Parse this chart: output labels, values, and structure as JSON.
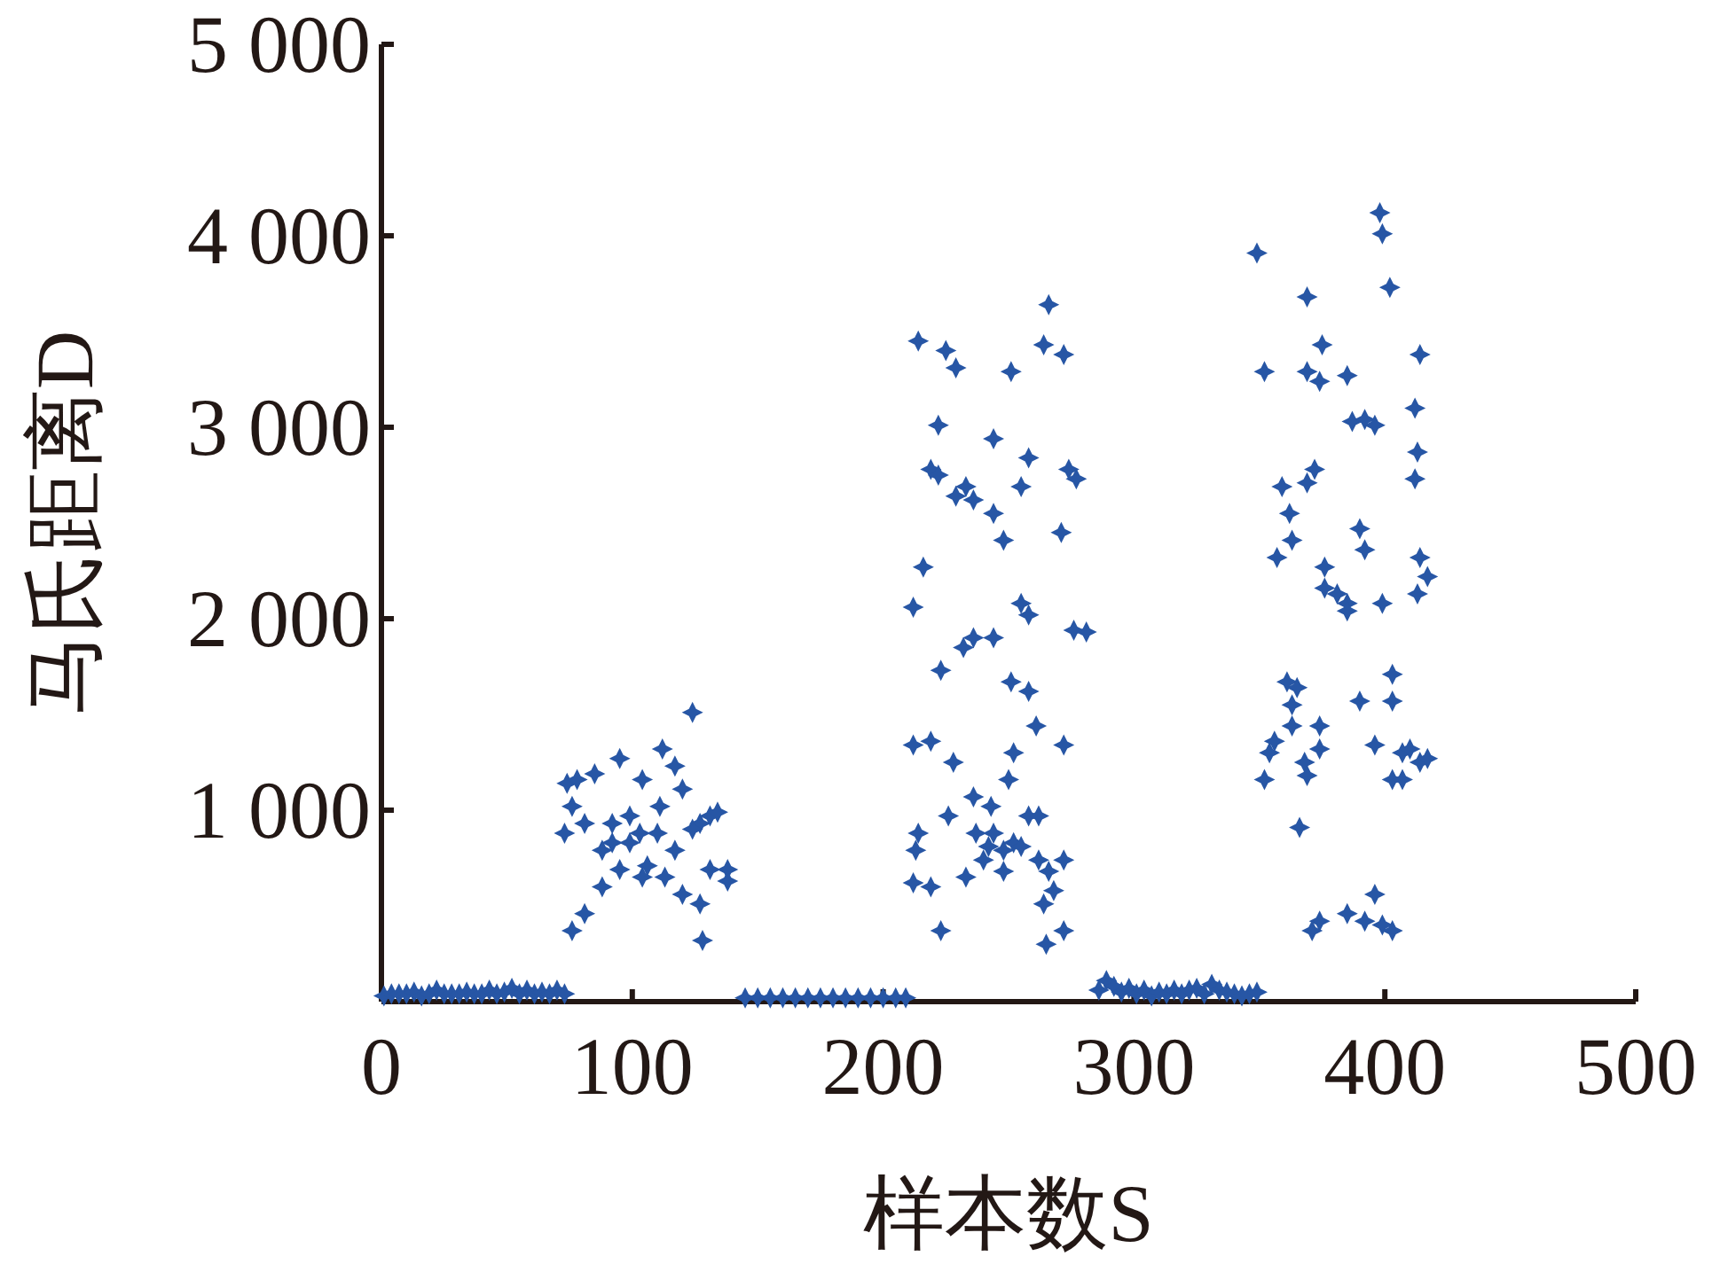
{
  "chart_data": {
    "type": "scatter",
    "xlabel": "样本数S",
    "ylabel": "马氏距离D",
    "xlim": [
      0,
      500
    ],
    "ylim": [
      0,
      5000
    ],
    "xticks": [
      0,
      100,
      200,
      300,
      400,
      500
    ],
    "yticks": [
      {
        "value": 1000,
        "label": "1 000"
      },
      {
        "value": 2000,
        "label": "2 000"
      },
      {
        "value": 3000,
        "label": "3 000"
      },
      {
        "value": 4000,
        "label": "4 000"
      },
      {
        "value": 5000,
        "label": "5 000"
      }
    ],
    "marker": "cross",
    "series": [
      {
        "color": "#2756a5",
        "x": [
          1,
          4,
          7,
          10,
          13,
          16,
          19,
          22,
          25,
          28,
          31,
          34,
          37,
          40,
          43,
          46,
          49,
          52,
          55,
          58,
          61,
          64,
          67,
          70,
          73,
          74,
          78,
          85,
          73,
          81,
          95,
          112,
          124,
          117,
          120,
          104,
          99,
          103,
          92,
          110,
          117,
          127,
          131,
          134,
          131,
          138,
          127,
          120,
          113,
          88,
          81,
          76,
          128,
          138,
          106,
          95,
          88,
          99,
          111,
          124,
          76,
          92,
          104,
          145,
          150,
          155,
          160,
          165,
          170,
          175,
          180,
          185,
          190,
          195,
          200,
          205,
          209,
          214,
          222,
          225,
          229,
          219,
          222,
          229,
          236,
          233,
          212,
          216,
          223,
          236,
          232,
          219,
          212,
          214,
          213,
          212,
          219,
          223,
          228,
          226,
          236,
          237,
          233,
          240,
          242,
          244,
          243,
          244,
          244,
          244,
          248,
          251,
          255,
          258,
          255,
          258,
          251,
          258,
          261,
          252,
          250,
          248,
          248,
          252,
          255,
          258,
          262,
          262,
          266,
          264,
          265,
          268,
          272,
          266,
          264,
          272,
          274,
          277,
          271,
          276,
          281,
          272,
          272,
          286,
          289,
          292,
          295,
          298,
          301,
          304,
          307,
          310,
          313,
          316,
          319,
          322,
          325,
          328,
          331,
          334,
          337,
          340,
          343,
          346,
          349,
          349,
          352,
          352,
          354,
          356,
          357,
          359,
          362,
          363,
          361,
          363,
          363,
          365,
          369,
          369,
          375,
          374,
          369,
          372,
          368,
          369,
          366,
          374,
          374,
          376,
          376,
          381,
          385,
          385,
          385,
          387,
          392,
          396,
          398,
          399,
          402,
          390,
          392,
          390,
          396,
          403,
          407,
          399,
          403,
          403,
          407,
          410,
          412,
          413,
          412,
          414,
          414,
          417,
          413,
          414,
          417,
          374,
          385,
          392,
          396,
          399,
          403,
          371
        ],
        "values": [
          30,
          40,
          40,
          40,
          50,
          30,
          40,
          60,
          40,
          40,
          40,
          50,
          40,
          40,
          60,
          40,
          50,
          70,
          40,
          60,
          40,
          50,
          40,
          60,
          40,
          1140,
          1160,
          1190,
          880,
          930,
          1270,
          1320,
          1510,
          1230,
          1110,
          1160,
          970,
          880,
          830,
          880,
          790,
          930,
          970,
          990,
          690,
          690,
          510,
          560,
          650,
          600,
          460,
          370,
          320,
          630,
          710,
          690,
          790,
          830,
          1020,
          900,
          1020,
          930,
          650,
          20,
          20,
          20,
          20,
          20,
          20,
          20,
          20,
          20,
          20,
          20,
          20,
          20,
          20,
          3450,
          3010,
          3400,
          3310,
          2780,
          2750,
          2640,
          2620,
          2690,
          2060,
          2270,
          1730,
          1900,
          1850,
          1360,
          1340,
          880,
          790,
          620,
          600,
          370,
          1250,
          970,
          1070,
          880,
          650,
          740,
          810,
          880,
          1020,
          1900,
          2550,
          2940,
          2410,
          3290,
          2690,
          2840,
          2080,
          2020,
          1670,
          1620,
          1440,
          1300,
          1160,
          680,
          790,
          830,
          810,
          970,
          970,
          740,
          680,
          510,
          300,
          580,
          740,
          3640,
          3430,
          3380,
          2780,
          2730,
          2450,
          1940,
          1930,
          1340,
          370,
          60,
          110,
          80,
          50,
          70,
          40,
          60,
          30,
          50,
          40,
          60,
          40,
          60,
          70,
          40,
          90,
          60,
          50,
          40,
          30,
          40,
          50,
          3910,
          3290,
          1160,
          1300,
          1360,
          2320,
          2690,
          2550,
          2410,
          1670,
          1550,
          1440,
          1640,
          3680,
          3290,
          3430,
          3240,
          2710,
          2780,
          1250,
          1180,
          910,
          1320,
          1440,
          2160,
          2270,
          2130,
          2080,
          2040,
          3270,
          3030,
          3040,
          3010,
          4120,
          4010,
          3730,
          2470,
          2360,
          1570,
          1340,
          1160,
          1300,
          2080,
          1710,
          1570,
          1160,
          1320,
          2730,
          2870,
          3100,
          3380,
          2320,
          2220,
          2130,
          1250,
          1270,
          420,
          460,
          420,
          560,
          400,
          370,
          370
        ]
      }
    ]
  }
}
